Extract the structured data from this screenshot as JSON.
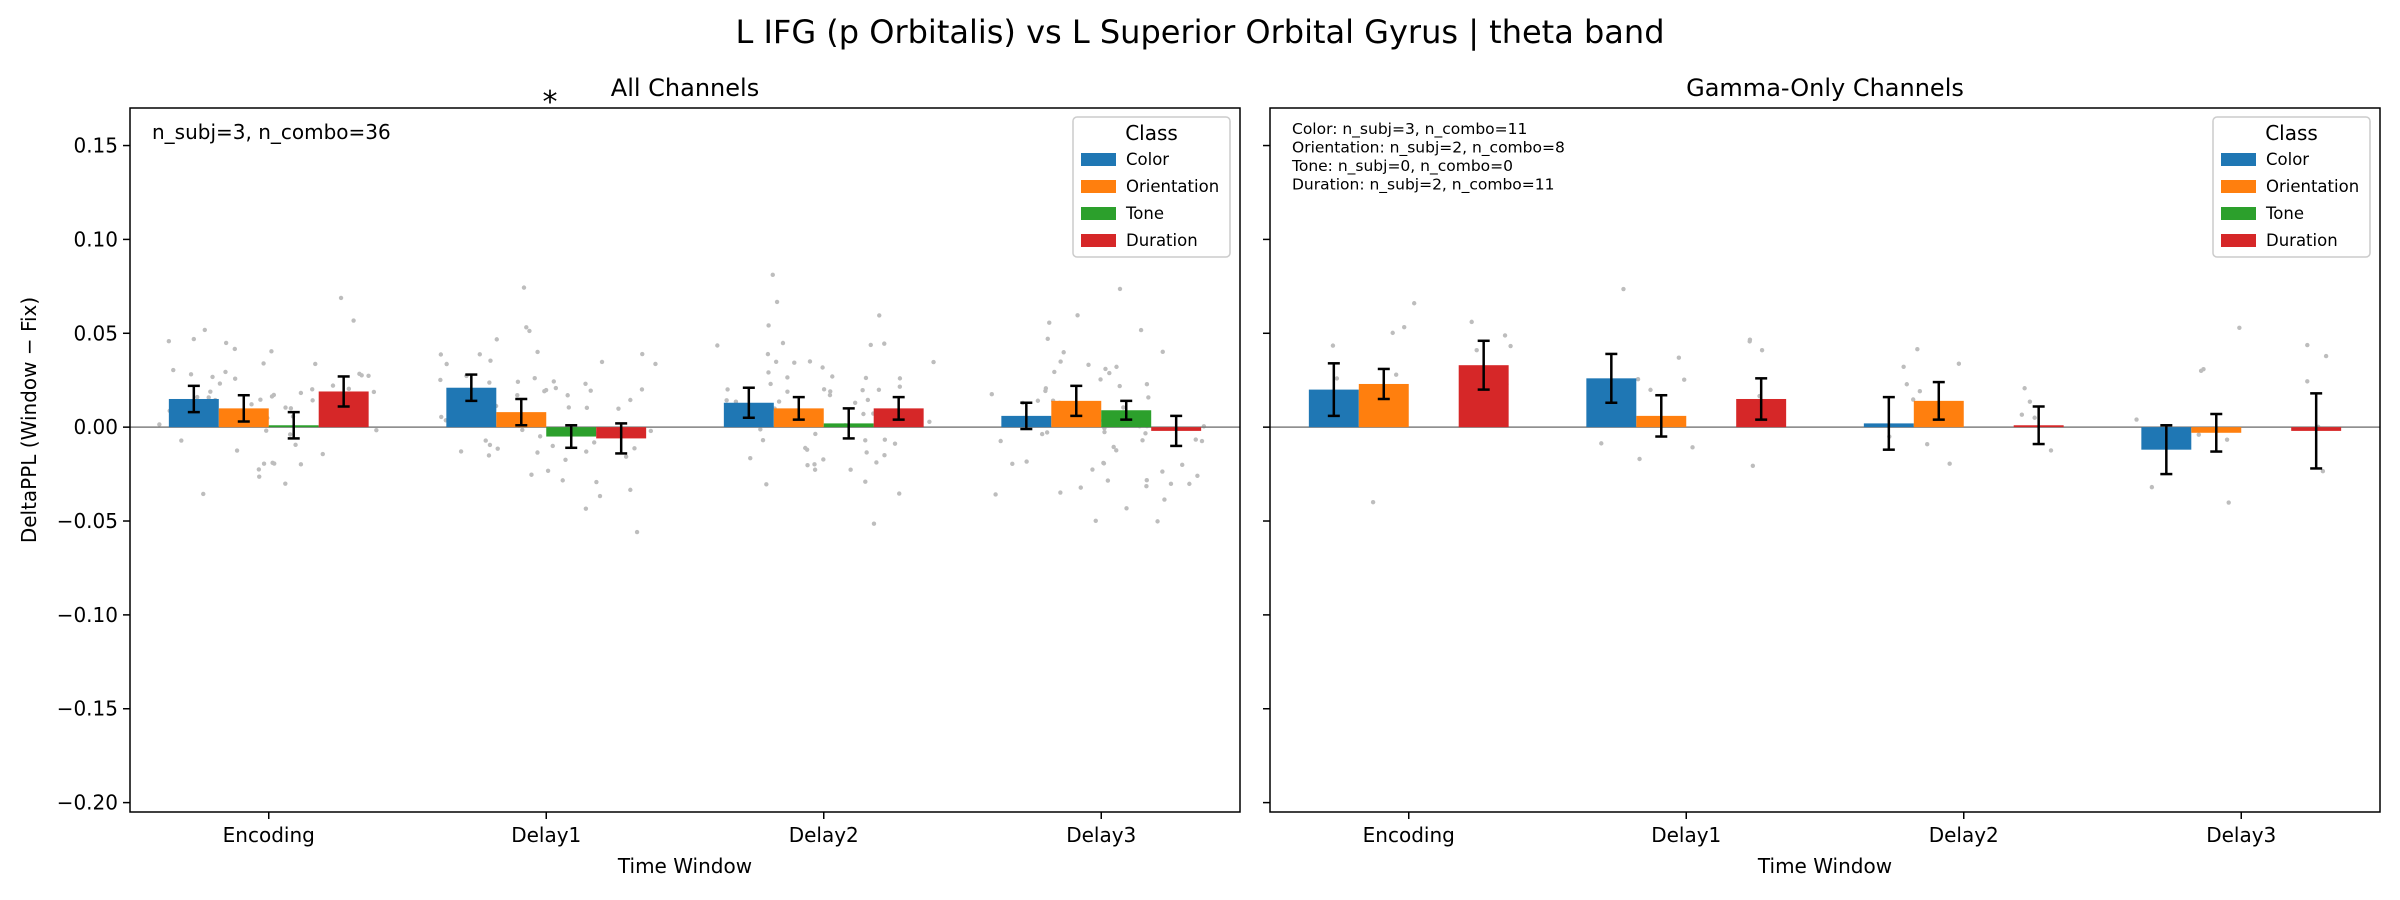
{
  "figure": {
    "title": "L IFG (p Orbitalis) vs L Superior Orbital Gyrus  |  theta band"
  },
  "shared": {
    "ylabel": "DeltaPPL (Window − Fix)",
    "xlabel": "Time Window",
    "legend_title": "Class",
    "legend_location": "top-right",
    "ylim": [
      -0.205,
      0.17
    ],
    "yticks": [
      "0.15",
      "0.10",
      "0.05",
      "0.00",
      "−0.05",
      "−0.10",
      "−0.15",
      "−0.20"
    ],
    "ytick_values": [
      0.15,
      0.1,
      0.05,
      0.0,
      -0.05,
      -0.1,
      -0.15,
      -0.2
    ],
    "colors": {
      "Color": "#1f77b4",
      "Orientation": "#ff7f0e",
      "Tone": "#2ca02c",
      "Duration": "#d62728",
      "points": "#bdbdbd",
      "significance": "#ff0000"
    },
    "zero_line": true,
    "grid": false
  },
  "chart_data": [
    {
      "type": "bar",
      "title": "All Channels",
      "annotation": "n_subj=3, n_combo=36",
      "significance_marker": "*",
      "categories": [
        "Encoding",
        "Delay1",
        "Delay2",
        "Delay3"
      ],
      "series": [
        {
          "name": "Color",
          "values": [
            0.015,
            0.021,
            0.013,
            0.006
          ],
          "err": [
            0.007,
            0.007,
            0.008,
            0.007
          ]
        },
        {
          "name": "Orientation",
          "values": [
            0.01,
            0.008,
            0.01,
            0.014
          ],
          "err": [
            0.007,
            0.007,
            0.006,
            0.008
          ]
        },
        {
          "name": "Tone",
          "values": [
            0.001,
            -0.005,
            0.002,
            0.009
          ],
          "err": [
            0.007,
            0.006,
            0.008,
            0.005
          ]
        },
        {
          "name": "Duration",
          "values": [
            0.019,
            -0.006,
            0.01,
            -0.002
          ],
          "err": [
            0.008,
            0.008,
            0.006,
            0.008
          ]
        }
      ]
    },
    {
      "type": "bar",
      "title": "Gamma-Only Channels",
      "annotation_lines": [
        "Color: n_subj=3, n_combo=11",
        "Orientation: n_subj=2, n_combo=8",
        "Tone: n_subj=0, n_combo=0",
        "Duration: n_subj=2, n_combo=11"
      ],
      "categories": [
        "Encoding",
        "Delay1",
        "Delay2",
        "Delay3"
      ],
      "series": [
        {
          "name": "Color",
          "values": [
            0.02,
            0.026,
            0.002,
            -0.012
          ],
          "err": [
            0.014,
            0.013,
            0.014,
            0.013
          ]
        },
        {
          "name": "Orientation",
          "values": [
            0.023,
            0.006,
            0.014,
            -0.003
          ],
          "err": [
            0.008,
            0.011,
            0.01,
            0.01
          ]
        },
        {
          "name": "Tone",
          "values": [
            null,
            null,
            null,
            null
          ],
          "err": [
            null,
            null,
            null,
            null
          ]
        },
        {
          "name": "Duration",
          "values": [
            0.033,
            0.015,
            0.001,
            -0.002
          ],
          "err": [
            0.013,
            0.011,
            0.01,
            0.02
          ]
        }
      ]
    }
  ]
}
